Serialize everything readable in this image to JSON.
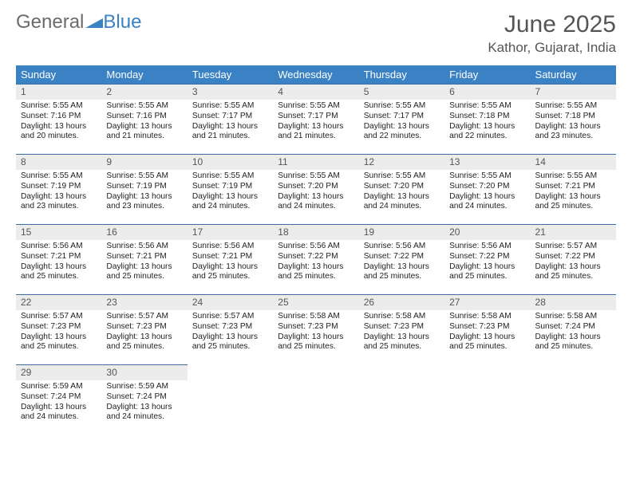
{
  "logo": {
    "part1": "General",
    "part2": "Blue"
  },
  "header": {
    "month_title": "June 2025",
    "location": "Kathor, Gujarat, India"
  },
  "style": {
    "header_bg": "#3b82c4",
    "header_text": "#ffffff",
    "daynum_bg": "#ececec",
    "daynum_border": "#3b6fa0",
    "title_color": "#555555",
    "body_text": "#222222",
    "th_fontsize": 13,
    "cell_fontsize": 10.2
  },
  "weekdays": [
    "Sunday",
    "Monday",
    "Tuesday",
    "Wednesday",
    "Thursday",
    "Friday",
    "Saturday"
  ],
  "days": [
    {
      "n": 1,
      "sr": "5:55 AM",
      "ss": "7:16 PM",
      "dl": "13 hours and 20 minutes."
    },
    {
      "n": 2,
      "sr": "5:55 AM",
      "ss": "7:16 PM",
      "dl": "13 hours and 21 minutes."
    },
    {
      "n": 3,
      "sr": "5:55 AM",
      "ss": "7:17 PM",
      "dl": "13 hours and 21 minutes."
    },
    {
      "n": 4,
      "sr": "5:55 AM",
      "ss": "7:17 PM",
      "dl": "13 hours and 21 minutes."
    },
    {
      "n": 5,
      "sr": "5:55 AM",
      "ss": "7:17 PM",
      "dl": "13 hours and 22 minutes."
    },
    {
      "n": 6,
      "sr": "5:55 AM",
      "ss": "7:18 PM",
      "dl": "13 hours and 22 minutes."
    },
    {
      "n": 7,
      "sr": "5:55 AM",
      "ss": "7:18 PM",
      "dl": "13 hours and 23 minutes."
    },
    {
      "n": 8,
      "sr": "5:55 AM",
      "ss": "7:19 PM",
      "dl": "13 hours and 23 minutes."
    },
    {
      "n": 9,
      "sr": "5:55 AM",
      "ss": "7:19 PM",
      "dl": "13 hours and 23 minutes."
    },
    {
      "n": 10,
      "sr": "5:55 AM",
      "ss": "7:19 PM",
      "dl": "13 hours and 24 minutes."
    },
    {
      "n": 11,
      "sr": "5:55 AM",
      "ss": "7:20 PM",
      "dl": "13 hours and 24 minutes."
    },
    {
      "n": 12,
      "sr": "5:55 AM",
      "ss": "7:20 PM",
      "dl": "13 hours and 24 minutes."
    },
    {
      "n": 13,
      "sr": "5:55 AM",
      "ss": "7:20 PM",
      "dl": "13 hours and 24 minutes."
    },
    {
      "n": 14,
      "sr": "5:55 AM",
      "ss": "7:21 PM",
      "dl": "13 hours and 25 minutes."
    },
    {
      "n": 15,
      "sr": "5:56 AM",
      "ss": "7:21 PM",
      "dl": "13 hours and 25 minutes."
    },
    {
      "n": 16,
      "sr": "5:56 AM",
      "ss": "7:21 PM",
      "dl": "13 hours and 25 minutes."
    },
    {
      "n": 17,
      "sr": "5:56 AM",
      "ss": "7:21 PM",
      "dl": "13 hours and 25 minutes."
    },
    {
      "n": 18,
      "sr": "5:56 AM",
      "ss": "7:22 PM",
      "dl": "13 hours and 25 minutes."
    },
    {
      "n": 19,
      "sr": "5:56 AM",
      "ss": "7:22 PM",
      "dl": "13 hours and 25 minutes."
    },
    {
      "n": 20,
      "sr": "5:56 AM",
      "ss": "7:22 PM",
      "dl": "13 hours and 25 minutes."
    },
    {
      "n": 21,
      "sr": "5:57 AM",
      "ss": "7:22 PM",
      "dl": "13 hours and 25 minutes."
    },
    {
      "n": 22,
      "sr": "5:57 AM",
      "ss": "7:23 PM",
      "dl": "13 hours and 25 minutes."
    },
    {
      "n": 23,
      "sr": "5:57 AM",
      "ss": "7:23 PM",
      "dl": "13 hours and 25 minutes."
    },
    {
      "n": 24,
      "sr": "5:57 AM",
      "ss": "7:23 PM",
      "dl": "13 hours and 25 minutes."
    },
    {
      "n": 25,
      "sr": "5:58 AM",
      "ss": "7:23 PM",
      "dl": "13 hours and 25 minutes."
    },
    {
      "n": 26,
      "sr": "5:58 AM",
      "ss": "7:23 PM",
      "dl": "13 hours and 25 minutes."
    },
    {
      "n": 27,
      "sr": "5:58 AM",
      "ss": "7:23 PM",
      "dl": "13 hours and 25 minutes."
    },
    {
      "n": 28,
      "sr": "5:58 AM",
      "ss": "7:24 PM",
      "dl": "13 hours and 25 minutes."
    },
    {
      "n": 29,
      "sr": "5:59 AM",
      "ss": "7:24 PM",
      "dl": "13 hours and 24 minutes."
    },
    {
      "n": 30,
      "sr": "5:59 AM",
      "ss": "7:24 PM",
      "dl": "13 hours and 24 minutes."
    }
  ],
  "labels": {
    "sunrise": "Sunrise: ",
    "sunset": "Sunset: ",
    "daylight": "Daylight: "
  },
  "start_weekday": 0
}
